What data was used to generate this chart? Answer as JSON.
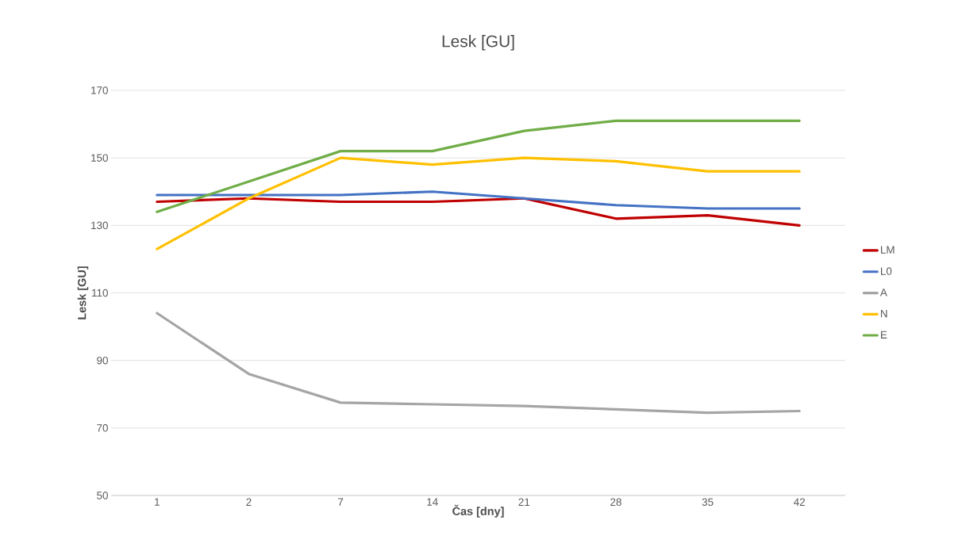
{
  "chart_data": {
    "type": "line",
    "title": "Lesk [GU]",
    "xlabel": "Čas [dny]",
    "ylabel": "Lesk [GU]",
    "categories": [
      "1",
      "2",
      "7",
      "14",
      "21",
      "28",
      "35",
      "42"
    ],
    "series": [
      {
        "name": "LM",
        "color": "#c00000",
        "values": [
          137,
          138,
          137,
          137,
          138,
          132,
          133,
          130
        ]
      },
      {
        "name": "L0",
        "color": "#4472c4",
        "values": [
          139,
          139,
          139,
          140,
          138,
          136,
          135,
          135
        ]
      },
      {
        "name": "A",
        "color": "#a5a5a5",
        "values": [
          104,
          86,
          77.5,
          77,
          76.5,
          75.5,
          74.5,
          75
        ]
      },
      {
        "name": "N",
        "color": "#ffc000",
        "values": [
          123,
          138,
          150,
          148,
          150,
          149,
          146,
          146
        ]
      },
      {
        "name": "E",
        "color": "#70ad47",
        "values": [
          134,
          143,
          152,
          152,
          158,
          161,
          161,
          161
        ]
      }
    ],
    "ylim": [
      50,
      170
    ],
    "yticks": [
      50,
      70,
      90,
      110,
      130,
      150,
      170
    ],
    "grid": "y",
    "legend": "right",
    "marker": "none",
    "line_style": "solid"
  }
}
